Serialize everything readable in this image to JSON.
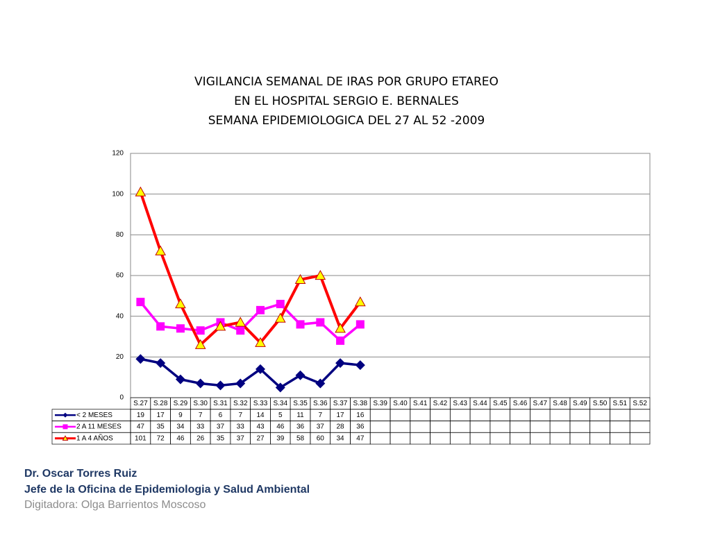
{
  "chart_data": {
    "type": "line",
    "title": [
      "VIGILANCIA SEMANAL DE IRAS POR GRUPO ETAREO",
      "EN EL HOSPITAL SERGIO E. BERNALES",
      "SEMANA EPIDEMIOLOGICA DEL 27 AL 52 -2009"
    ],
    "categories": [
      "S.27",
      "S.28",
      "S.29",
      "S.30",
      "S.31",
      "S.32",
      "S.33",
      "S.34",
      "S.35",
      "S.36",
      "S.37",
      "S.38",
      "S.39",
      "S.40",
      "S.41",
      "S.42",
      "S.43",
      "S.44",
      "S.45",
      "S.46",
      "S.47",
      "S.48",
      "S.49",
      "S.50",
      "S.51",
      "S.52"
    ],
    "series": [
      {
        "name": "< 2 MESES",
        "color": "#000080",
        "marker": "diamond",
        "values": [
          19,
          17,
          9,
          7,
          6,
          7,
          14,
          5,
          11,
          7,
          17,
          16,
          null,
          null,
          null,
          null,
          null,
          null,
          null,
          null,
          null,
          null,
          null,
          null,
          null,
          null
        ]
      },
      {
        "name": "2 A 11 MESES",
        "color": "#ff00ff",
        "marker": "square",
        "values": [
          47,
          35,
          34,
          33,
          37,
          33,
          43,
          46,
          36,
          37,
          28,
          36,
          null,
          null,
          null,
          null,
          null,
          null,
          null,
          null,
          null,
          null,
          null,
          null,
          null,
          null
        ]
      },
      {
        "name": "1 A 4 AÑOS",
        "color": "#ff0000",
        "marker": "triangle",
        "values": [
          101,
          72,
          46,
          26,
          35,
          37,
          27,
          39,
          58,
          60,
          34,
          47,
          null,
          null,
          null,
          null,
          null,
          null,
          null,
          null,
          null,
          null,
          null,
          null,
          null,
          null
        ]
      }
    ],
    "ylim": [
      0,
      120
    ],
    "yticks": [
      0,
      20,
      40,
      60,
      80,
      100,
      120
    ],
    "grid": true,
    "data_table": true
  },
  "footer": {
    "author": "Dr.  Oscar  Torres Ruiz",
    "position": "Jefe de la Oficina de Epidemiologia y  Salud Ambiental",
    "typist": "Digitadora: Olga Barrientos Moscoso"
  }
}
